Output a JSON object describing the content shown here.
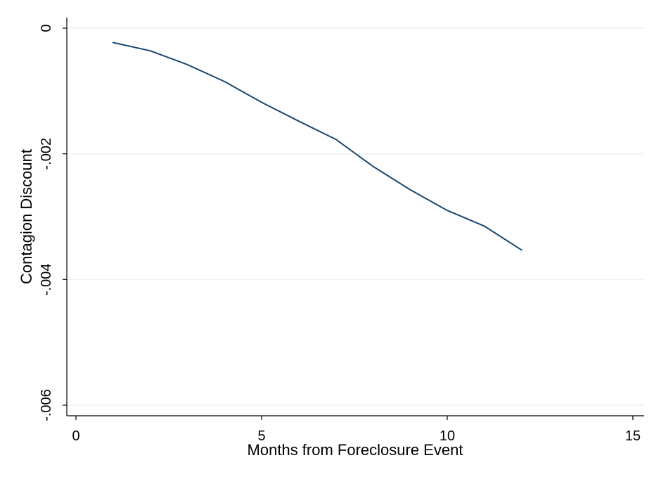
{
  "chart_data": {
    "type": "line",
    "title": "",
    "xlabel": "Months from Foreclosure Event",
    "ylabel": "Contagion Discount",
    "xlim": [
      0,
      15
    ],
    "ylim": [
      -0.006,
      0
    ],
    "x_ticks": [
      {
        "value": 0,
        "label": "0"
      },
      {
        "value": 5,
        "label": "5"
      },
      {
        "value": 10,
        "label": "10"
      },
      {
        "value": 15,
        "label": "15"
      }
    ],
    "y_ticks": [
      {
        "value": 0,
        "label": "0"
      },
      {
        "value": -0.002,
        "label": "-.002"
      },
      {
        "value": -0.004,
        "label": "-.004"
      },
      {
        "value": -0.006,
        "label": "-.006"
      }
    ],
    "grid": "horizontal",
    "series": [
      {
        "color": "#1a476f",
        "x": [
          1,
          2,
          3,
          4,
          5,
          6,
          7,
          8,
          9,
          10,
          11,
          12
        ],
        "y": [
          -0.00023,
          -0.00036,
          -0.00058,
          -0.00085,
          -0.00118,
          -0.00148,
          -0.00177,
          -0.0022,
          -0.00257,
          -0.0029,
          -0.00315,
          -0.00353
        ]
      }
    ]
  }
}
